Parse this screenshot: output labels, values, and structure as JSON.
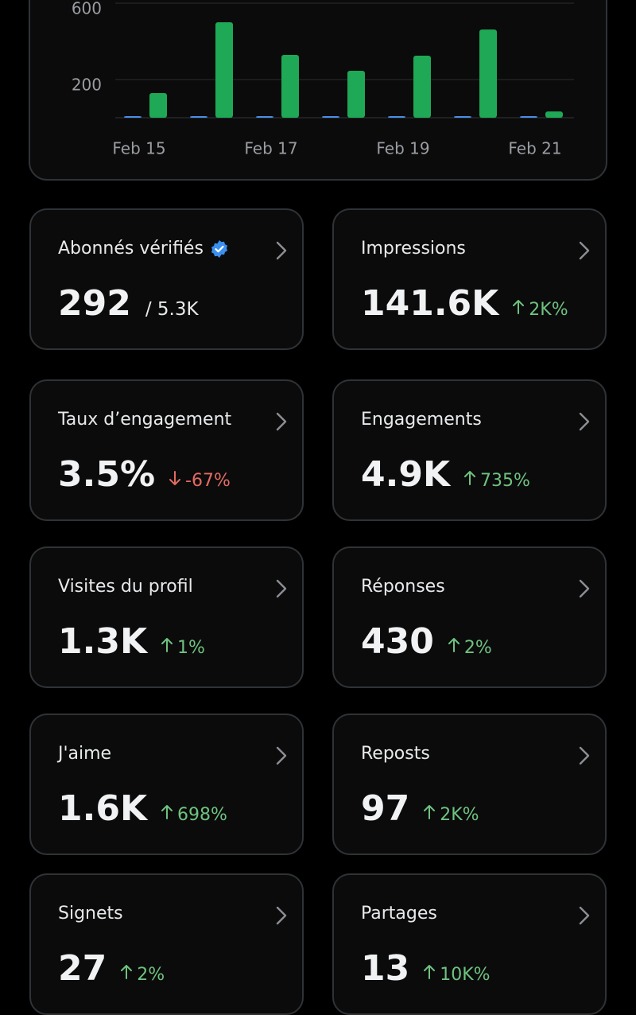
{
  "chart_data": {
    "type": "bar",
    "categories": [
      "Feb 15",
      null,
      "Feb 17",
      null,
      "Feb 19",
      null,
      "Feb 21"
    ],
    "series": [
      {
        "color": "#4a8fe7",
        "values": [
          2,
          2,
          2,
          2,
          2,
          8,
          0
        ]
      },
      {
        "color": "#1fa855",
        "values": [
          129,
          500,
          329,
          246,
          325,
          462,
          33
        ]
      }
    ],
    "ylim": [
      0,
      600
    ],
    "yticks": [
      200,
      600
    ],
    "grid": true
  },
  "cards": [
    {
      "title": "Abonnés vérifiés",
      "verified": true,
      "value": "292",
      "suffix": "/ 5.3K"
    },
    {
      "title": "Impressions",
      "value": "141.6K",
      "change": "2K%",
      "direction": "up"
    },
    {
      "title": "Taux d’engagement",
      "value": "3.5%",
      "change": "-67%",
      "direction": "down"
    },
    {
      "title": "Engagements",
      "value": "4.9K",
      "change": "735%",
      "direction": "up"
    },
    {
      "title": "Visites du profil",
      "value": "1.3K",
      "change": "1%",
      "direction": "up"
    },
    {
      "title": "Réponses",
      "value": "430",
      "change": "2%",
      "direction": "up"
    },
    {
      "title": "J'aime",
      "value": "1.6K",
      "change": "698%",
      "direction": "up"
    },
    {
      "title": "Reposts",
      "value": "97",
      "change": "2K%",
      "direction": "up"
    },
    {
      "title": "Signets",
      "value": "27",
      "change": "2%",
      "direction": "up"
    },
    {
      "title": "Partages",
      "value": "13",
      "change": "10K%",
      "direction": "up"
    }
  ]
}
